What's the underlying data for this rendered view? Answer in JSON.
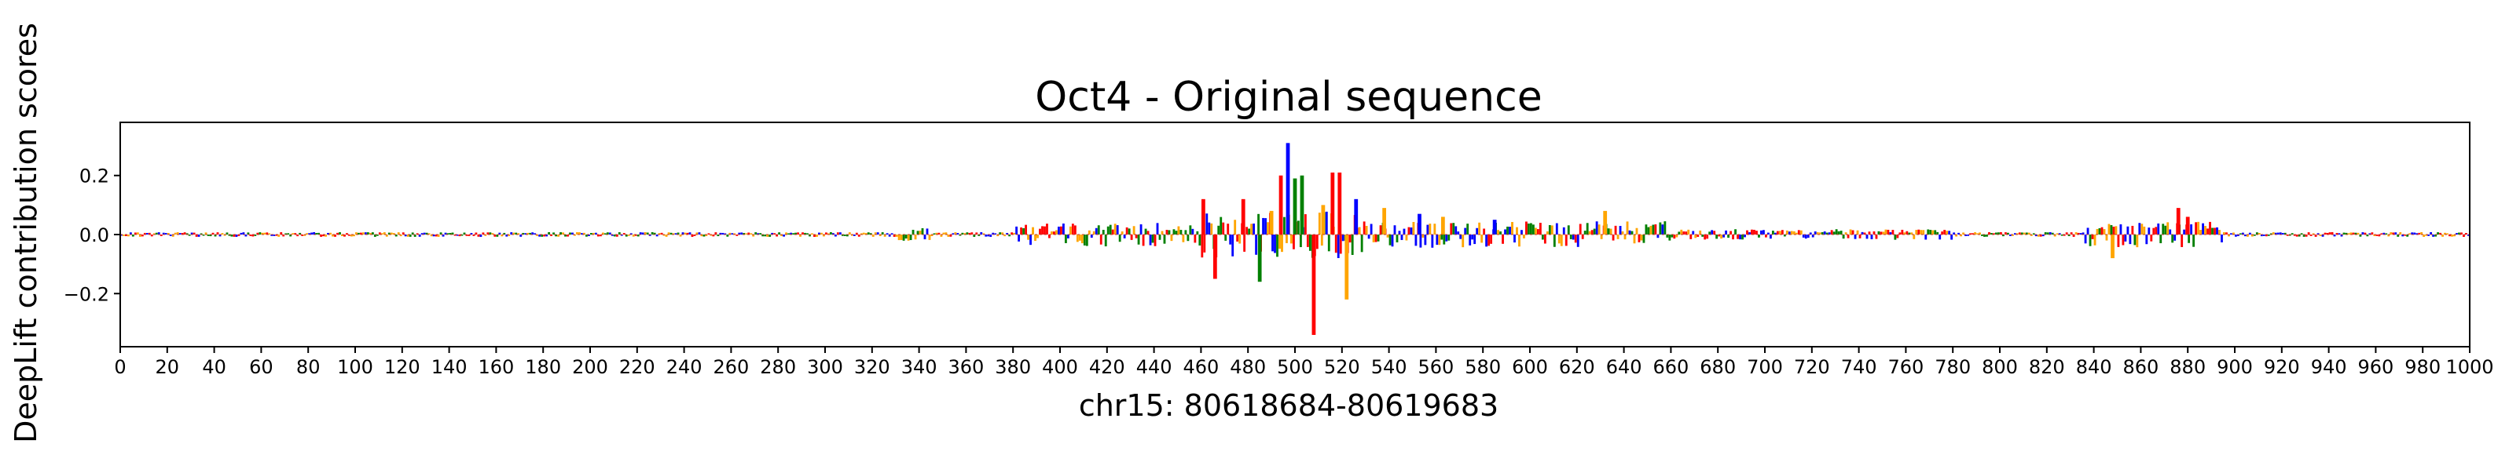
{
  "chart_data": {
    "type": "bar",
    "title": "Oct4 - Original sequence",
    "xlabel": "chr15: 80618684-80619683",
    "ylabel": "DeepLift contribution scores",
    "xlim": [
      0,
      1000
    ],
    "ylim": [
      -0.38,
      0.38
    ],
    "x_ticks": [
      0,
      20,
      40,
      60,
      80,
      100,
      120,
      140,
      160,
      180,
      200,
      220,
      240,
      260,
      280,
      300,
      320,
      340,
      360,
      380,
      400,
      420,
      440,
      460,
      480,
      500,
      520,
      540,
      560,
      580,
      600,
      620,
      640,
      660,
      680,
      700,
      720,
      740,
      760,
      780,
      800,
      820,
      840,
      860,
      880,
      900,
      920,
      940,
      960,
      980,
      1000
    ],
    "x_tick_labels": [
      "0",
      "20",
      "40",
      "60",
      "80",
      "100",
      "120",
      "140",
      "160",
      "180",
      "200",
      "220",
      "240",
      "260",
      "280",
      "300",
      "320",
      "340",
      "360",
      "380",
      "400",
      "420",
      "440",
      "460",
      "480",
      "500",
      "520",
      "540",
      "560",
      "580",
      "600",
      "620",
      "640",
      "660",
      "680",
      "700",
      "720",
      "740",
      "760",
      "780",
      "800",
      "820",
      "840",
      "860",
      "880",
      "900",
      "920",
      "940",
      "960",
      "980",
      "1000"
    ],
    "y_ticks": [
      -0.2,
      0.0,
      0.2
    ],
    "y_tick_labels": [
      "−0.2",
      "0.0",
      "0.2"
    ],
    "grid": false,
    "legend": "none",
    "base_colors": {
      "A": "#008000",
      "C": "#0000ff",
      "G": "#ffa500",
      "T": "#ff0000"
    },
    "notable_peaks": [
      {
        "x": 461,
        "value": 0.12,
        "base": "T"
      },
      {
        "x": 466,
        "value": -0.15,
        "base": "T"
      },
      {
        "x": 478,
        "value": 0.12,
        "base": "T"
      },
      {
        "x": 485,
        "value": -0.16,
        "base": "A"
      },
      {
        "x": 490,
        "value": 0.08,
        "base": "G"
      },
      {
        "x": 494,
        "value": 0.2,
        "base": "T"
      },
      {
        "x": 497,
        "value": 0.31,
        "base": "C"
      },
      {
        "x": 500,
        "value": 0.19,
        "base": "A"
      },
      {
        "x": 503,
        "value": 0.2,
        "base": "A"
      },
      {
        "x": 508,
        "value": -0.34,
        "base": "T"
      },
      {
        "x": 512,
        "value": 0.1,
        "base": "G"
      },
      {
        "x": 516,
        "value": 0.21,
        "base": "T"
      },
      {
        "x": 519,
        "value": 0.21,
        "base": "T"
      },
      {
        "x": 522,
        "value": -0.22,
        "base": "G"
      },
      {
        "x": 526,
        "value": 0.12,
        "base": "C"
      },
      {
        "x": 538,
        "value": 0.09,
        "base": "G"
      },
      {
        "x": 553,
        "value": 0.07,
        "base": "C"
      },
      {
        "x": 563,
        "value": 0.06,
        "base": "G"
      },
      {
        "x": 585,
        "value": 0.05,
        "base": "C"
      },
      {
        "x": 632,
        "value": 0.08,
        "base": "G"
      },
      {
        "x": 848,
        "value": -0.08,
        "base": "G"
      },
      {
        "x": 876,
        "value": 0.09,
        "base": "T"
      },
      {
        "x": 880,
        "value": 0.06,
        "base": "T"
      }
    ]
  }
}
